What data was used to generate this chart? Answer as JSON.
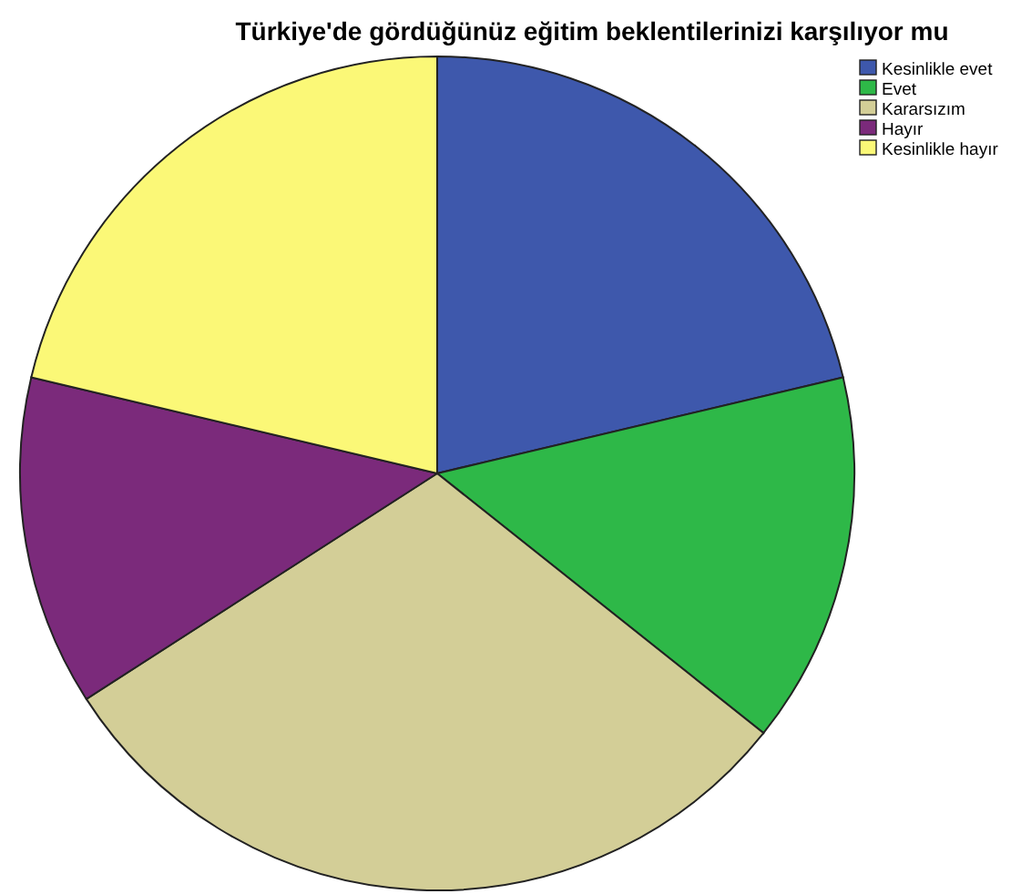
{
  "chart_data": {
    "type": "pie",
    "title": "Türkiye'de gördüğünüz eğitim beklentilerinizi karşılıyor mu",
    "categories": [
      "Kesinlikle evet",
      "Evet",
      "Kararsızım",
      "Hayır",
      "Kesinlikle hayır"
    ],
    "values": [
      21.3,
      14.4,
      30.2,
      12.8,
      21.3
    ],
    "colors": [
      "#3e58ac",
      "#2eb848",
      "#d3ce97",
      "#7b2a7b",
      "#fbf877"
    ],
    "legend": "top right"
  }
}
